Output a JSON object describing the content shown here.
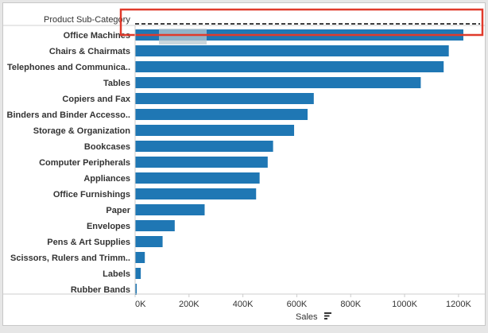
{
  "chart_data": {
    "type": "bar",
    "orientation": "horizontal",
    "row_header": "Product Sub-Category",
    "xlabel": "Sales",
    "categories": [
      "Office Machines",
      "Chairs & Chairmats",
      "Telephones and Communica..",
      "Tables",
      "Copiers and Fax",
      "Binders and Binder Accesso..",
      "Storage & Organization",
      "Bookcases",
      "Computer Peripherals",
      "Appliances",
      "Office Furnishings",
      "Paper",
      "Envelopes",
      "Pens & Art Supplies",
      "Scissors, Rulers and Trimm..",
      "Labels",
      "Rubber Bands"
    ],
    "values": [
      1218000,
      1164000,
      1145000,
      1060000,
      663000,
      640000,
      590000,
      512000,
      492000,
      462000,
      449000,
      258000,
      147000,
      102000,
      36000,
      21000,
      6000
    ],
    "xlim": [
      0,
      1280000
    ],
    "xticks": [
      0,
      200000,
      400000,
      600000,
      800000,
      1000000,
      1200000
    ],
    "xtick_labels": [
      "0K",
      "200K",
      "400K",
      "600K",
      "800K",
      "1000K",
      "1200K"
    ],
    "sort_indicator": "sort-descending-icon",
    "reference_line": "dashed",
    "colors": {
      "bar": "#1f77b4",
      "highlight_box": "#e03a2b",
      "reference_line": "#000000"
    }
  }
}
